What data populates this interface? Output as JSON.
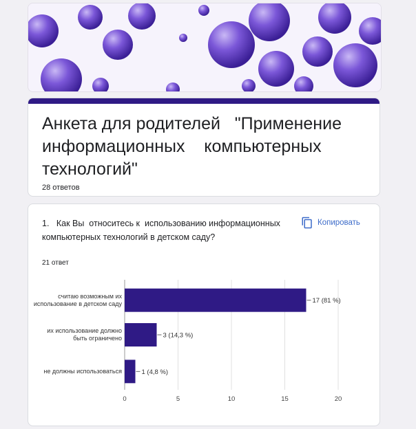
{
  "form": {
    "title": "Анкета для родителей   \"Применение информационных    компьютерных технологий\"",
    "responses": "28 ответов"
  },
  "question": {
    "text": "1.   Как Вы  относитесь к  использованию информационных компьютерных технологий в детском саду?",
    "responses": "21 ответ",
    "copy_label": "Копировать",
    "copy_icon": "copy-icon"
  },
  "colors": {
    "accent": "#2f1a85",
    "bar": "#2f1a85",
    "link": "#3c6bc9"
  },
  "chart_data": {
    "type": "bar",
    "orientation": "horizontal",
    "categories": [
      "считаю возможным их использование в детском саду",
      "их использование должно быть ограничено",
      "не должны использоваться"
    ],
    "values": [
      17,
      3,
      1
    ],
    "data_labels": [
      "17 (81 %)",
      "3 (14,3 %)",
      "1 (4,8 %)"
    ],
    "xlim": [
      0,
      20
    ],
    "xticks": [
      0,
      5,
      10,
      15,
      20
    ],
    "grid": true,
    "title": "",
    "xlabel": "",
    "ylabel": ""
  }
}
